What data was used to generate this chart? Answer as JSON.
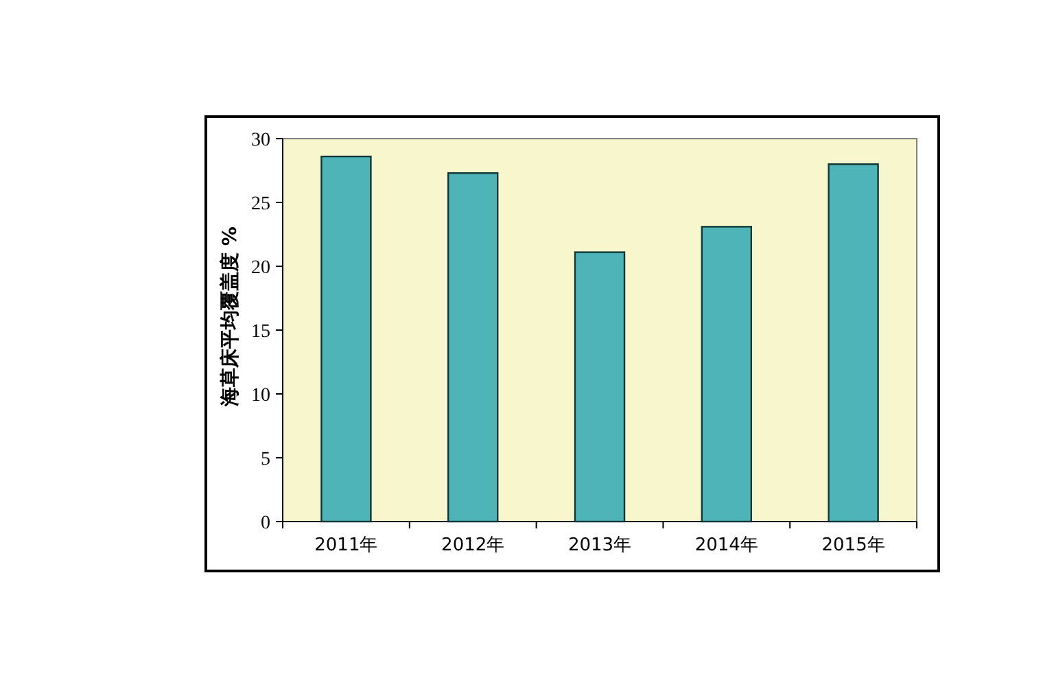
{
  "chart_data": {
    "type": "bar",
    "ylabel": "海草床平均覆盖度 %",
    "categories": [
      "2011年",
      "2012年",
      "2013年",
      "2014年",
      "2015年"
    ],
    "values": [
      28.6,
      27.3,
      21.1,
      23.1,
      28.0
    ],
    "color": "#4fb4b8",
    "ylim": [
      0,
      30
    ],
    "yticks": [
      0,
      5,
      10,
      15,
      20,
      25,
      30
    ],
    "grid": false
  }
}
